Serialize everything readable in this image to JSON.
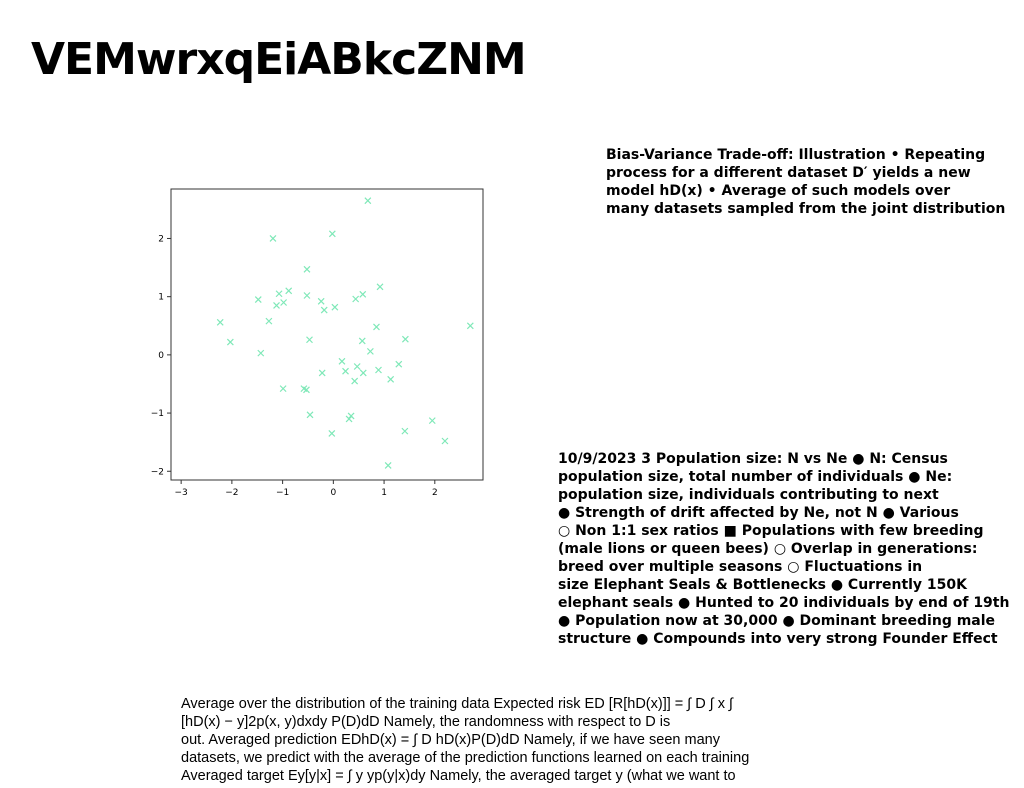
{
  "title": "VEMwrxqEiABkcZNM",
  "text_a": {
    "lines": [
      "Bias-Variance Trade-off: Illustration • Repeating",
      "process for a different dataset D′ yields a new",
      "model hD(x) • Average of such models over",
      "many datasets sampled from the joint distribution"
    ]
  },
  "text_b": {
    "lines": [
      "10/9/2023 3 Population size: N vs Ne ● N: Census",
      "population size, total number of individuals ● Ne:",
      "population size, individuals contributing to next",
      "● Strength of drift affected by Ne, not N ● Various",
      "○ Non 1:1 sex ratios ■ Populations with few breeding",
      "(male lions or queen bees) ○ Overlap in generations:",
      "breed over multiple seasons ○ Fluctuations in",
      "size Elephant Seals & Bottlenecks ● Currently 150K",
      "elephant seals ● Hunted to 20 individuals by end of 19th",
      "● Population now at 30,000 ● Dominant breeding male",
      "structure ● Compounds into very strong Founder Effect"
    ]
  },
  "text_c": {
    "lines": [
      "Average over the distribution of the training data Expected risk ED [R[hD(x)]] = ∫ D ∫ x ∫",
      "[hD(x) − y]2p(x, y)dxdy P(D)dD Namely, the randomness with respect to D is",
      "out. Averaged prediction EDhD(x) = ∫ D hD(x)P(D)dD Namely, if we have seen many",
      "datasets, we predict with the average of the prediction functions learned on each training",
      "Averaged target Ey[y|x] = ∫ y yp(y|x)dy Namely, the averaged target y (what we want to"
    ]
  },
  "chart_data": {
    "type": "scatter",
    "title": "",
    "xlabel": "",
    "ylabel": "",
    "xlim": [
      -3.2,
      2.95
    ],
    "ylim": [
      -2.15,
      2.85
    ],
    "xticks": [
      -3,
      -2,
      -1,
      0,
      1,
      2
    ],
    "yticks": [
      -2,
      -1,
      0,
      1,
      2
    ],
    "marker": "x",
    "color": "#7fe8b8",
    "x": [
      0.68,
      -1.19,
      -0.02,
      -0.52,
      -1.07,
      -0.98,
      -1.48,
      -1.12,
      -0.52,
      -0.24,
      0.44,
      0.58,
      0.92,
      -2.23,
      -1.27,
      -0.88,
      0.03,
      -0.18,
      0.85,
      -2.03,
      -1.43,
      -0.47,
      0.57,
      0.73,
      1.42,
      0.17,
      0.24,
      0.47,
      0.59,
      0.89,
      1.29,
      2.7,
      -0.22,
      0.42,
      1.13,
      -0.99,
      -0.58,
      -0.53,
      -0.46,
      0.35,
      0.31,
      -0.03,
      1.41,
      1.95,
      2.2,
      1.08
    ],
    "y": [
      2.65,
      2.0,
      2.08,
      1.47,
      1.05,
      0.9,
      0.95,
      0.85,
      1.02,
      0.92,
      0.96,
      1.04,
      1.17,
      0.56,
      0.58,
      1.1,
      0.82,
      0.77,
      0.48,
      0.22,
      0.03,
      0.26,
      0.24,
      0.06,
      0.27,
      -0.11,
      -0.28,
      -0.2,
      -0.31,
      -0.26,
      -0.16,
      0.5,
      -0.31,
      -0.45,
      -0.42,
      -0.58,
      -0.58,
      -0.6,
      -1.03,
      -1.05,
      -1.1,
      -1.35,
      -1.31,
      -1.13,
      -1.48,
      -1.9
    ]
  }
}
